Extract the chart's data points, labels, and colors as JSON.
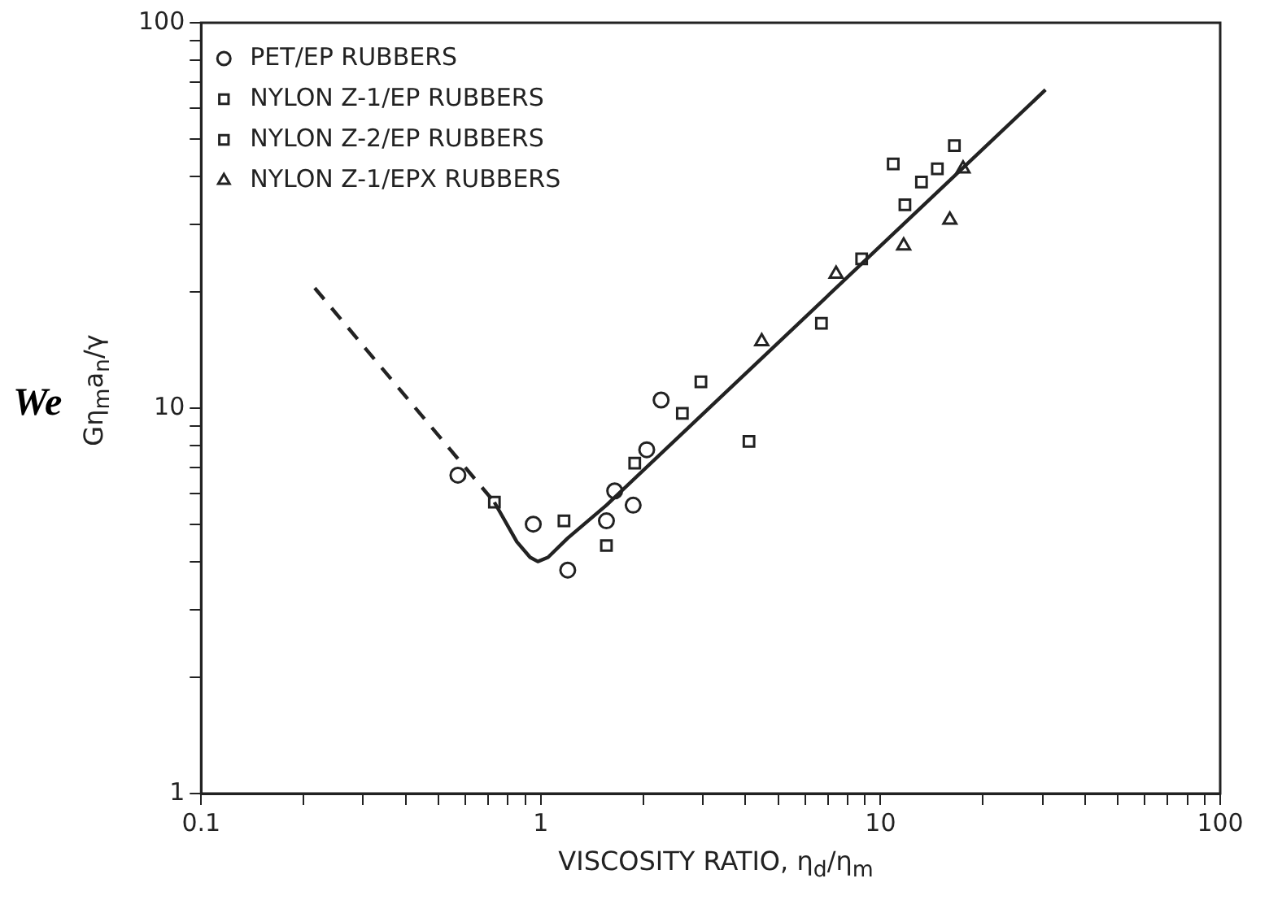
{
  "chart_data": {
    "type": "scatter",
    "xlabel": "VISCOSITY RATIO, η$_{d}$/η$_{m}$",
    "ylabel": "Gη$_{m}$a$_{n}$/γ",
    "annotations": [
      "We"
    ],
    "log": "xy",
    "legend": "top left",
    "grid": false,
    "xlim": [
      0.1,
      100
    ],
    "ylim": [
      1,
      100
    ],
    "xticks": [
      0.1,
      {
        "value": 0.2,
        "label": null
      },
      {
        "value": 0.3,
        "label": null
      },
      {
        "value": 0.4,
        "label": null
      },
      {
        "value": 0.5,
        "label": null
      },
      {
        "value": 0.6,
        "label": null
      },
      {
        "value": 0.7,
        "label": null
      },
      {
        "value": 0.8,
        "label": null
      },
      {
        "value": 0.9,
        "label": null
      },
      1,
      {
        "value": 2,
        "label": null
      },
      {
        "value": 3,
        "label": null
      },
      {
        "value": 4,
        "label": null
      },
      {
        "value": 5,
        "label": null
      },
      {
        "value": 6,
        "label": null
      },
      {
        "value": 7,
        "label": null
      },
      {
        "value": 8,
        "label": null
      },
      {
        "value": 9,
        "label": null
      },
      10,
      {
        "value": 20,
        "label": null
      },
      {
        "value": 30,
        "label": null
      },
      {
        "value": 40,
        "label": null
      },
      {
        "value": 50,
        "label": null
      },
      {
        "value": 60,
        "label": null
      },
      {
        "value": 70,
        "label": null
      },
      {
        "value": 80,
        "label": null
      },
      {
        "value": 90,
        "label": null
      },
      100
    ],
    "yticks": [
      1,
      {
        "value": 2,
        "label": null
      },
      {
        "value": 3,
        "label": null
      },
      {
        "value": 4,
        "label": null
      },
      {
        "value": 5,
        "label": null
      },
      {
        "value": 6,
        "label": null
      },
      {
        "value": 7,
        "label": null
      },
      {
        "value": 8,
        "label": null
      },
      {
        "value": 9,
        "label": null
      },
      10,
      {
        "value": 20,
        "label": null
      },
      {
        "value": 30,
        "label": null
      },
      {
        "value": 40,
        "label": null
      },
      {
        "value": 50,
        "label": null
      },
      {
        "value": 60,
        "label": null
      },
      {
        "value": 70,
        "label": null
      },
      {
        "value": 80,
        "label": null
      },
      {
        "value": 90,
        "label": null
      },
      100
    ],
    "series": [
      {
        "name": "PET/EP RUBBERS",
        "color": "#222222",
        "marker": "circle",
        "x": [
          0.57,
          0.95,
          1.2,
          1.56,
          1.65,
          1.87,
          2.05,
          2.26
        ],
        "values": [
          6.7,
          5.0,
          3.8,
          5.1,
          6.1,
          5.6,
          7.8,
          10.5
        ]
      },
      {
        "name": "NYLON Z-1/EP RUBBERS",
        "color": "#222222",
        "marker": "square",
        "x": [
          4.1,
          6.7,
          8.8,
          10.9,
          11.8,
          13.2,
          14.7,
          16.5
        ],
        "values": [
          8.2,
          16.6,
          24.4,
          43,
          33.7,
          38.6,
          41.8,
          48
        ]
      },
      {
        "name": "NYLON Z-2/EP RUBBERS",
        "color": "#222222",
        "marker": "square",
        "x": [
          0.73,
          1.17,
          1.56,
          1.89,
          2.61,
          2.96
        ],
        "values": [
          5.7,
          5.1,
          4.4,
          7.2,
          9.7,
          11.7
        ]
      },
      {
        "name": "NYLON Z-1/EPX RUBBERS",
        "color": "#222222",
        "marker": "triangle",
        "x": [
          4.47,
          7.4,
          11.7,
          16.0,
          17.5
        ],
        "values": [
          14.9,
          22.3,
          26.4,
          30.8,
          41.8
        ]
      },
      {
        "type": "line",
        "color": "#222222",
        "line_style": "dashed",
        "marker": "none",
        "x": [
          0.216,
          0.73
        ],
        "values": [
          20.5,
          5.7
        ]
      },
      {
        "type": "line",
        "color": "#222222",
        "line_style": "solid",
        "marker": "none",
        "x": [
          0.73,
          0.85,
          0.93,
          0.98,
          1.05,
          1.2,
          1.56,
          30.6
        ],
        "values": [
          5.7,
          4.5,
          4.1,
          4.0,
          4.1,
          4.6,
          5.6,
          67
        ]
      }
    ]
  }
}
